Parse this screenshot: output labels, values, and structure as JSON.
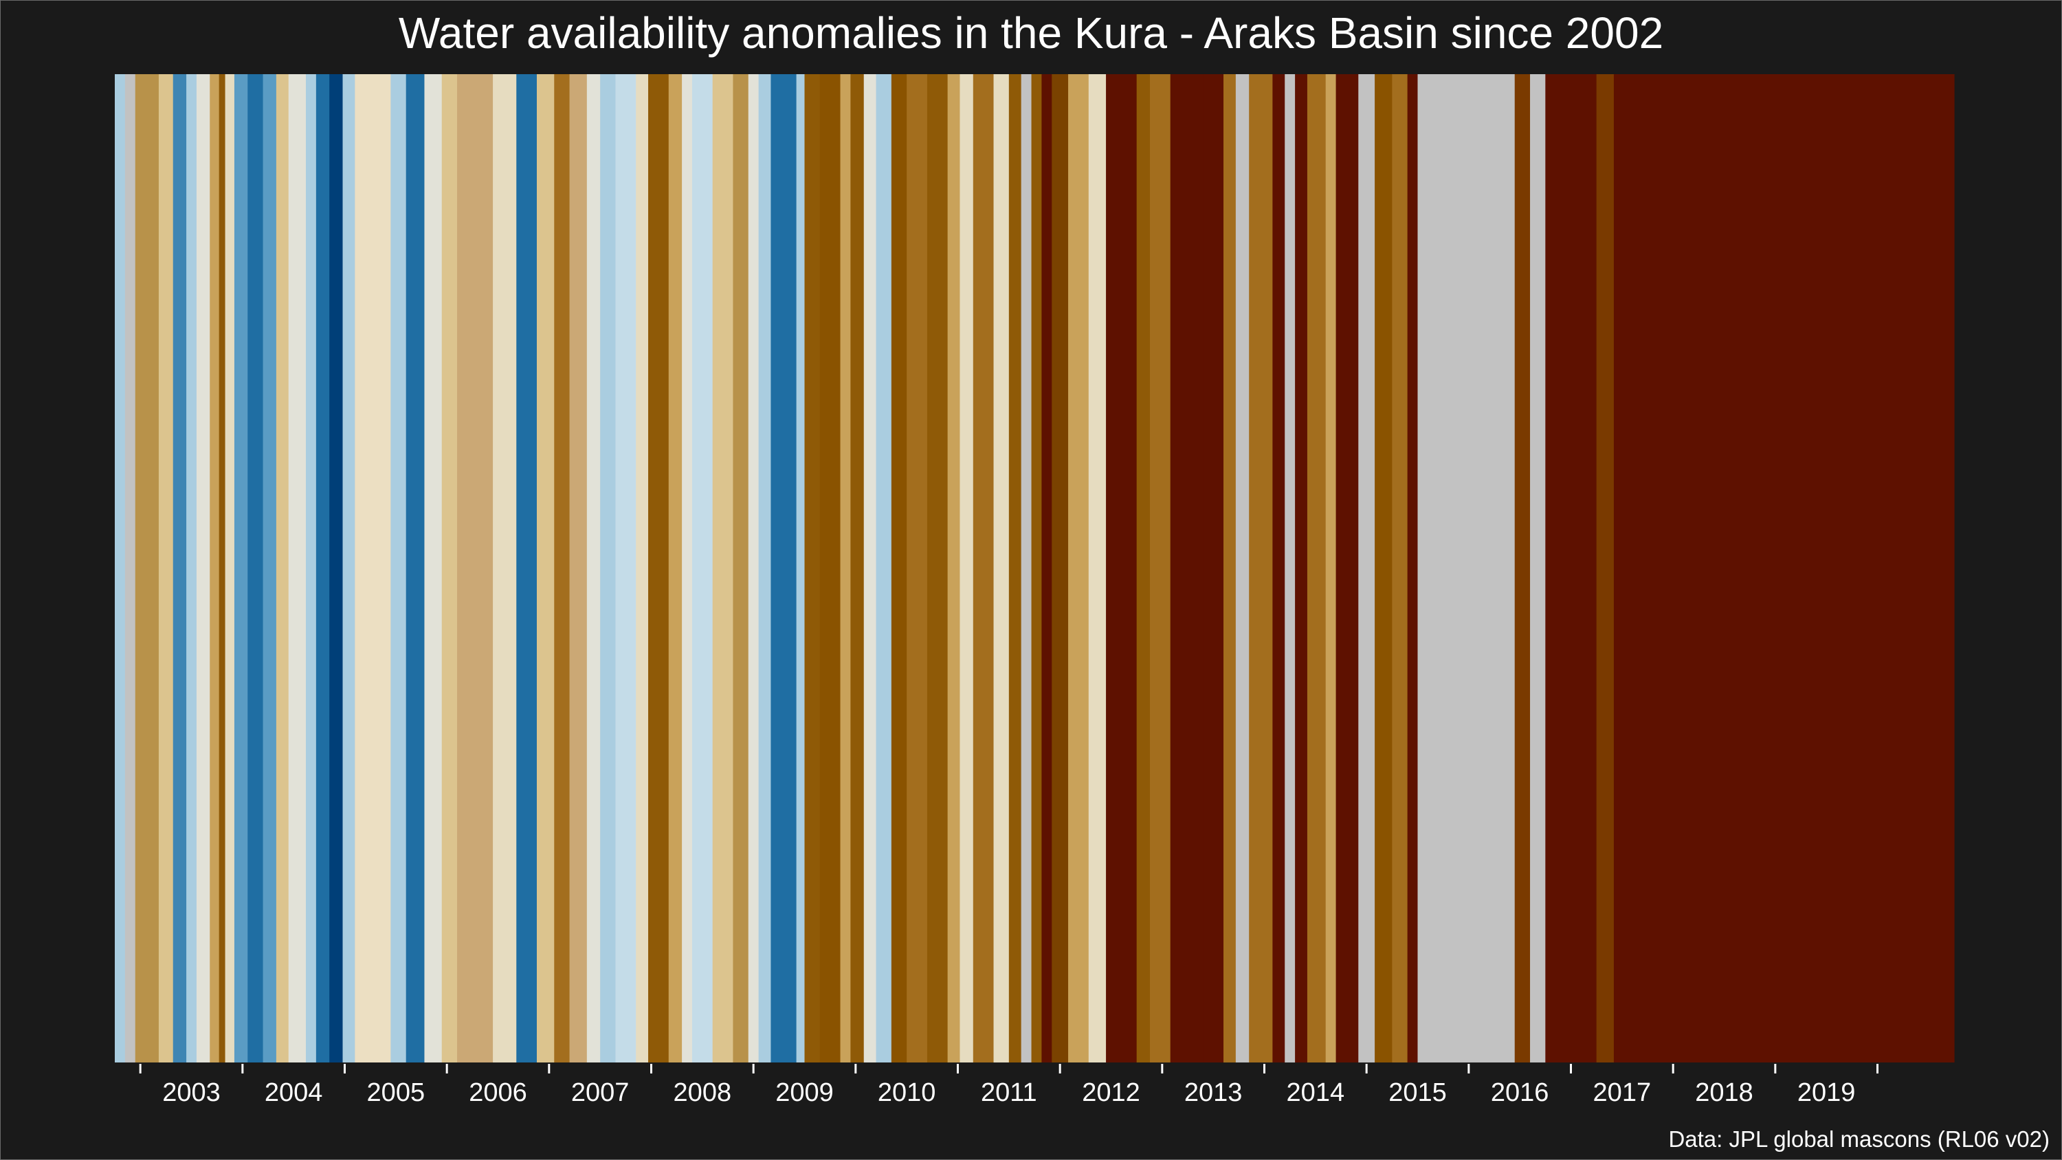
{
  "chart_data": {
    "type": "bar",
    "title": "Water availability anomalies in the Kura - Araks Basin since 2002",
    "caption": "Data: JPL global mascons (RL06 v02)",
    "xlabel": "",
    "ylabel": "",
    "x_range": [
      2002.25,
      2020.25
    ],
    "x_ticks": [
      2003,
      2004,
      2005,
      2006,
      2007,
      2008,
      2009,
      2010,
      2011,
      2012,
      2013,
      2014,
      2015,
      2016,
      2017,
      2018,
      2019
    ],
    "missing_color": "#c2c2c2",
    "stripes": [
      {
        "start": 2002.25,
        "end": 2002.35,
        "color": "#aacde0"
      },
      {
        "start": 2002.35,
        "end": 2002.45,
        "color": "#c2c2c2"
      },
      {
        "start": 2002.45,
        "end": 2002.68,
        "color": "#b8924a"
      },
      {
        "start": 2002.68,
        "end": 2002.82,
        "color": "#dcc48e"
      },
      {
        "start": 2002.82,
        "end": 2002.95,
        "color": "#3e85b3"
      },
      {
        "start": 2002.95,
        "end": 2003.05,
        "color": "#aacde0"
      },
      {
        "start": 2003.05,
        "end": 2003.18,
        "color": "#e2e2d8"
      },
      {
        "start": 2003.18,
        "end": 2003.27,
        "color": "#c9a25a"
      },
      {
        "start": 2003.27,
        "end": 2003.33,
        "color": "#8f5a07"
      },
      {
        "start": 2003.33,
        "end": 2003.42,
        "color": "#e6dcc0"
      },
      {
        "start": 2003.42,
        "end": 2003.55,
        "color": "#5a9cc4"
      },
      {
        "start": 2003.55,
        "end": 2003.7,
        "color": "#1f6ea3"
      },
      {
        "start": 2003.7,
        "end": 2003.83,
        "color": "#5a9cc4"
      },
      {
        "start": 2003.83,
        "end": 2003.95,
        "color": "#dcc48e"
      },
      {
        "start": 2003.95,
        "end": 2004.12,
        "color": "#e2e2d8"
      },
      {
        "start": 2004.12,
        "end": 2004.22,
        "color": "#aacde0"
      },
      {
        "start": 2004.22,
        "end": 2004.35,
        "color": "#1f6ea3"
      },
      {
        "start": 2004.35,
        "end": 2004.48,
        "color": "#003f78"
      },
      {
        "start": 2004.48,
        "end": 2004.6,
        "color": "#aacde0"
      },
      {
        "start": 2004.6,
        "end": 2004.95,
        "color": "#ecdfc2"
      },
      {
        "start": 2004.95,
        "end": 2005.1,
        "color": "#aacde0"
      },
      {
        "start": 2005.1,
        "end": 2005.28,
        "color": "#1f6ea3"
      },
      {
        "start": 2005.28,
        "end": 2005.45,
        "color": "#e2e2d8"
      },
      {
        "start": 2005.45,
        "end": 2005.6,
        "color": "#dcc48e"
      },
      {
        "start": 2005.6,
        "end": 2005.95,
        "color": "#cba875"
      },
      {
        "start": 2005.95,
        "end": 2006.18,
        "color": "#e6dcc0"
      },
      {
        "start": 2006.18,
        "end": 2006.38,
        "color": "#1f6ea3"
      },
      {
        "start": 2006.38,
        "end": 2006.55,
        "color": "#dcc48e"
      },
      {
        "start": 2006.55,
        "end": 2006.7,
        "color": "#a36e1e"
      },
      {
        "start": 2006.7,
        "end": 2006.87,
        "color": "#cba875"
      },
      {
        "start": 2006.87,
        "end": 2007.0,
        "color": "#e2e2d8"
      },
      {
        "start": 2007.0,
        "end": 2007.15,
        "color": "#aacde0"
      },
      {
        "start": 2007.15,
        "end": 2007.35,
        "color": "#c4dce8"
      },
      {
        "start": 2007.35,
        "end": 2007.47,
        "color": "#e6dcc0"
      },
      {
        "start": 2007.47,
        "end": 2007.67,
        "color": "#8f5a07"
      },
      {
        "start": 2007.67,
        "end": 2007.8,
        "color": "#c9a25a"
      },
      {
        "start": 2007.8,
        "end": 2007.9,
        "color": "#e2e2d8"
      },
      {
        "start": 2007.9,
        "end": 2008.1,
        "color": "#c4dce8"
      },
      {
        "start": 2008.1,
        "end": 2008.3,
        "color": "#dcc48e"
      },
      {
        "start": 2008.3,
        "end": 2008.45,
        "color": "#b8924a"
      },
      {
        "start": 2008.45,
        "end": 2008.55,
        "color": "#e2e2d8"
      },
      {
        "start": 2008.55,
        "end": 2008.67,
        "color": "#aacde0"
      },
      {
        "start": 2008.67,
        "end": 2008.92,
        "color": "#1f6ea3"
      },
      {
        "start": 2008.92,
        "end": 2009.0,
        "color": "#aacde0"
      },
      {
        "start": 2009.0,
        "end": 2009.15,
        "color": "#8f5a07"
      },
      {
        "start": 2009.15,
        "end": 2009.35,
        "color": "#8a5300"
      },
      {
        "start": 2009.35,
        "end": 2009.45,
        "color": "#c9a25a"
      },
      {
        "start": 2009.45,
        "end": 2009.58,
        "color": "#8f5a07"
      },
      {
        "start": 2009.58,
        "end": 2009.7,
        "color": "#e2e2d8"
      },
      {
        "start": 2009.7,
        "end": 2009.85,
        "color": "#aacde0"
      },
      {
        "start": 2009.85,
        "end": 2010.0,
        "color": "#8a5300"
      },
      {
        "start": 2010.0,
        "end": 2010.2,
        "color": "#a36e1e"
      },
      {
        "start": 2010.2,
        "end": 2010.4,
        "color": "#8f5a07"
      },
      {
        "start": 2010.4,
        "end": 2010.52,
        "color": "#c9a25a"
      },
      {
        "start": 2010.52,
        "end": 2010.65,
        "color": "#e6dcc0"
      },
      {
        "start": 2010.65,
        "end": 2010.85,
        "color": "#a36e1e"
      },
      {
        "start": 2010.85,
        "end": 2011.0,
        "color": "#e6dcc0"
      },
      {
        "start": 2011.0,
        "end": 2011.12,
        "color": "#8f5a07"
      },
      {
        "start": 2011.12,
        "end": 2011.22,
        "color": "#c2c2c2"
      },
      {
        "start": 2011.22,
        "end": 2011.32,
        "color": "#8f5a07"
      },
      {
        "start": 2011.32,
        "end": 2011.42,
        "color": "#5e1100"
      },
      {
        "start": 2011.42,
        "end": 2011.58,
        "color": "#7a4200"
      },
      {
        "start": 2011.58,
        "end": 2011.78,
        "color": "#c9a25a"
      },
      {
        "start": 2011.78,
        "end": 2011.95,
        "color": "#e6dcc0"
      },
      {
        "start": 2011.95,
        "end": 2012.25,
        "color": "#5e1100"
      },
      {
        "start": 2012.25,
        "end": 2012.38,
        "color": "#8f5a07"
      },
      {
        "start": 2012.38,
        "end": 2012.58,
        "color": "#a36e1e"
      },
      {
        "start": 2012.58,
        "end": 2012.9,
        "color": "#5e1100"
      },
      {
        "start": 2012.9,
        "end": 2013.1,
        "color": "#5e1100"
      },
      {
        "start": 2013.1,
        "end": 2013.22,
        "color": "#a36e1e"
      },
      {
        "start": 2013.22,
        "end": 2013.35,
        "color": "#c2c2c2"
      },
      {
        "start": 2013.35,
        "end": 2013.58,
        "color": "#a36e1e"
      },
      {
        "start": 2013.58,
        "end": 2013.7,
        "color": "#5e1100"
      },
      {
        "start": 2013.7,
        "end": 2013.8,
        "color": "#c2c2c2"
      },
      {
        "start": 2013.8,
        "end": 2013.92,
        "color": "#5e1100"
      },
      {
        "start": 2013.92,
        "end": 2014.1,
        "color": "#a36e1e"
      },
      {
        "start": 2014.1,
        "end": 2014.2,
        "color": "#c9a25a"
      },
      {
        "start": 2014.2,
        "end": 2014.42,
        "color": "#5e1100"
      },
      {
        "start": 2014.42,
        "end": 2014.58,
        "color": "#c2c2c2"
      },
      {
        "start": 2014.58,
        "end": 2014.75,
        "color": "#8a5300"
      },
      {
        "start": 2014.75,
        "end": 2014.9,
        "color": "#a36e1e"
      },
      {
        "start": 2014.9,
        "end": 2015.0,
        "color": "#5e1100"
      },
      {
        "start": 2015.0,
        "end": 2015.2,
        "color": "#c2c2c2"
      },
      {
        "start": 2015.2,
        "end": 2015.95,
        "color": "#c2c2c2"
      },
      {
        "start": 2015.95,
        "end": 2016.1,
        "color": "#7a3a00"
      },
      {
        "start": 2016.1,
        "end": 2016.25,
        "color": "#c2c2c2"
      },
      {
        "start": 2016.25,
        "end": 2016.75,
        "color": "#5e1100"
      },
      {
        "start": 2016.75,
        "end": 2016.92,
        "color": "#7a3a00"
      },
      {
        "start": 2016.92,
        "end": 2020.25,
        "color": "#5e1100"
      }
    ]
  }
}
